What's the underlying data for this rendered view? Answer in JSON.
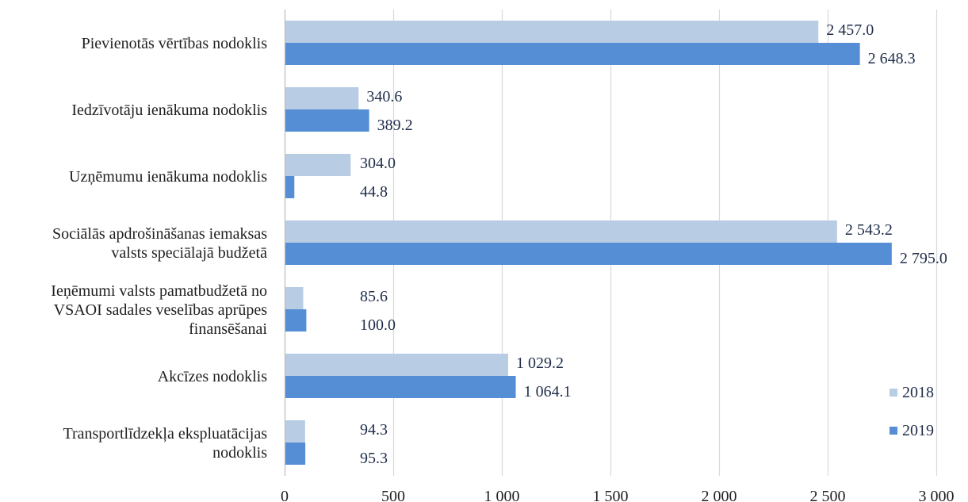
{
  "chart_data": {
    "type": "bar",
    "orientation": "horizontal",
    "title": "",
    "xlabel": "",
    "ylabel": "",
    "xlim": [
      0,
      3000
    ],
    "xticks": [
      0,
      500,
      1000,
      1500,
      2000,
      2500,
      3000
    ],
    "xtick_labels": [
      "0",
      "500",
      "1 000",
      "1 500",
      "2 000",
      "2 500",
      "3 000"
    ],
    "grid": "vertical",
    "legend_position": "bottom-right",
    "categories": [
      [
        "Pievienotās vērtības nodoklis"
      ],
      [
        "Iedzīvotāju ienākuma nodoklis"
      ],
      [
        "Uzņēmumu ienākuma nodoklis"
      ],
      [
        "Sociālās apdrošināšanas iemaksas",
        "valsts  speciālajā budžetā"
      ],
      [
        "Ieņēmumi valsts pamatbudžetā no",
        "VSAOI sadales veselības aprūpes",
        "finansēšanai"
      ],
      [
        "Akcīzes nodoklis"
      ],
      [
        "Transportlīdzekļa ekspluatācijas",
        "nodoklis"
      ]
    ],
    "series": [
      {
        "name": "2018",
        "color": "#b8cce4",
        "values": [
          2457.0,
          340.6,
          304.0,
          2543.2,
          85.6,
          1029.2,
          94.3
        ],
        "labels": [
          "2 457.0",
          "340.6",
          "304.0",
          "2 543.2",
          "85.6",
          "1 029.2",
          "94.3"
        ]
      },
      {
        "name": "2019",
        "color": "#558ed5",
        "values": [
          2648.3,
          389.2,
          44.8,
          2795.0,
          100.0,
          1064.1,
          95.3
        ],
        "labels": [
          "2 648.3",
          "389.2",
          "44.8",
          "2 795.0",
          "100.0",
          "1 064.1",
          "95.3"
        ]
      }
    ]
  }
}
